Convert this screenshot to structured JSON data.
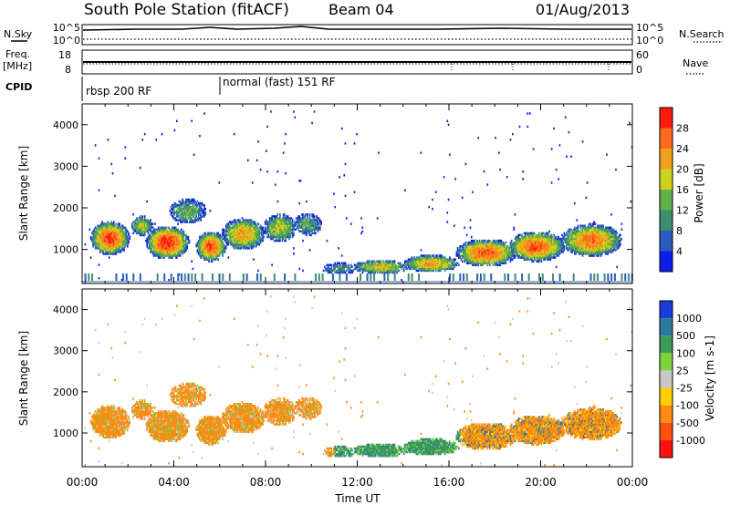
{
  "header": {
    "station": "South Pole Station (fitACF)",
    "beam": "Beam 04",
    "date": "01/Aug/2013"
  },
  "status_panels": {
    "nsky_label": "N.Sky",
    "nsky_top": "10^5",
    "nsky_bottom": "10^0",
    "nsearch_label": "N.Search",
    "freq_label_1": "Freq.",
    "freq_label_2": "[MHz]",
    "freq_top": "18",
    "freq_bottom": "8",
    "nave_label": "Nave",
    "nave_top": "60",
    "nave_bottom": "0",
    "cpid_label": "CPID",
    "cpid_segments": [
      {
        "label": "rbsp 200 RF",
        "start_hour": 0
      },
      {
        "label": "normal (fast) 151 RF",
        "start_hour": 6
      }
    ]
  },
  "chart_data": [
    {
      "type": "heatmap",
      "parameter": "Power",
      "ylabel": "Slant Range [km]",
      "xlabel": "",
      "xlim_hours": [
        0,
        24
      ],
      "x_tick_labels": [
        "00:00",
        "04:00",
        "08:00",
        "12:00",
        "16:00",
        "20:00",
        "00:00"
      ],
      "ylim": [
        180,
        4500
      ],
      "y_ticks": [
        1000,
        2000,
        3000,
        4000
      ],
      "colorbar": {
        "label": "Power [dB]",
        "ticks": [
          4,
          8,
          12,
          16,
          20,
          24,
          28
        ],
        "range": [
          0,
          32
        ],
        "colors": [
          "#0a1ee6",
          "#2c5bbf",
          "#3e8e6e",
          "#63b04a",
          "#ccd21e",
          "#f0a01e",
          "#ff6a1e",
          "#ff1a0a"
        ]
      }
    },
    {
      "type": "heatmap",
      "parameter": "Velocity",
      "ylabel": "Slant Range [km]",
      "xlabel": "Time UT",
      "xlim_hours": [
        0,
        24
      ],
      "x_tick_labels": [
        "00:00",
        "04:00",
        "08:00",
        "12:00",
        "16:00",
        "20:00",
        "00:00"
      ],
      "ylim": [
        180,
        4500
      ],
      "y_ticks": [
        1000,
        2000,
        3000,
        4000
      ],
      "colorbar": {
        "label": "Velocity [m s-1]",
        "ticks": [
          "1000",
          "500",
          "100",
          "25",
          "-25",
          "-100",
          "-500",
          "-1000"
        ],
        "colors": [
          "#1a3cd8",
          "#2e7a9e",
          "#3c9a5a",
          "#7ed23a",
          "#c8c8c8",
          "#ffd000",
          "#ff8c10",
          "#ff5010",
          "#ff1010"
        ]
      }
    }
  ]
}
